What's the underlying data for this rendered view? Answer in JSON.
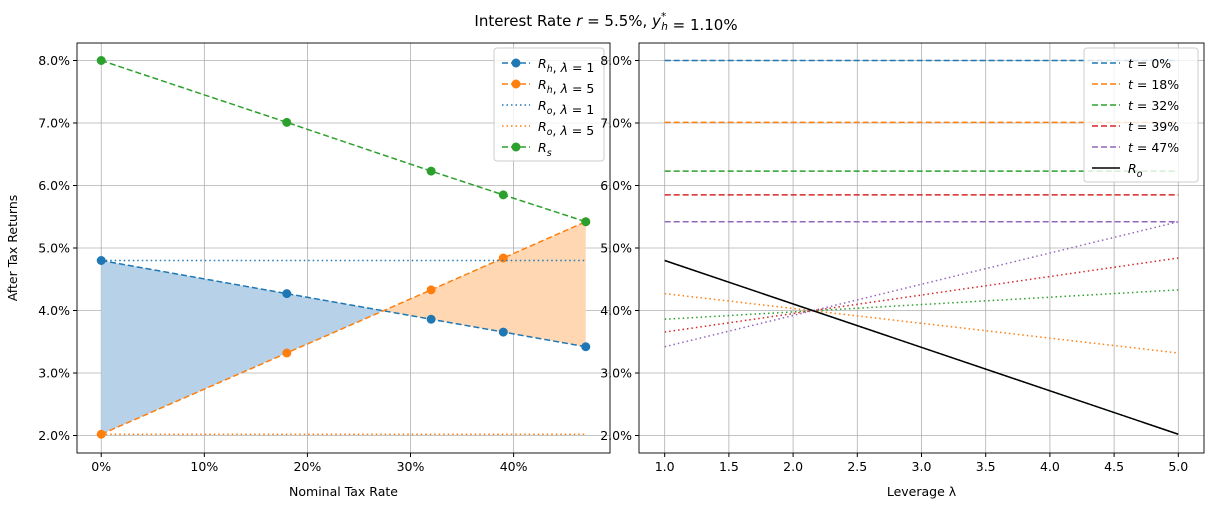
{
  "title": "Interest Rate r = 5.5%, y_h* = 1.10%",
  "chart_data": [
    {
      "type": "line",
      "xlabel": "Nominal Tax Rate",
      "ylabel": "After Tax Returns",
      "xlim": [
        -0.0235,
        0.4935
      ],
      "ylim": [
        1.72,
        8.28
      ],
      "grid": true,
      "legend_position": "top-right",
      "x_ticks": [
        0,
        0.1,
        0.2,
        0.3,
        0.4
      ],
      "x_tick_labels": [
        "0%",
        "10%",
        "20%",
        "30%",
        "40%"
      ],
      "y_ticks": [
        2,
        3,
        4,
        5,
        6,
        7,
        8
      ],
      "y_tick_labels": [
        "2.0%",
        "3.0%",
        "4.0%",
        "5.0%",
        "6.0%",
        "7.0%",
        "8.0%"
      ],
      "x": [
        0,
        0.18,
        0.32,
        0.39,
        0.47
      ],
      "series": [
        {
          "name": "R_h, λ = 1",
          "color": "#1f77b4",
          "style": "dashed",
          "marker": true,
          "values": [
            4.8,
            4.27,
            3.86,
            3.655,
            3.42
          ]
        },
        {
          "name": "R_h, λ = 5",
          "color": "#ff7f0e",
          "style": "dashed",
          "marker": true,
          "values": [
            2.02,
            3.32,
            4.33,
            4.84,
            5.42
          ]
        },
        {
          "name": "R_o, λ = 1",
          "color": "#1f77b4",
          "style": "dotted",
          "marker": false,
          "values": [
            4.8,
            4.8,
            4.8,
            4.8,
            4.8
          ]
        },
        {
          "name": "R_o, λ = 5",
          "color": "#ff7f0e",
          "style": "dotted",
          "marker": false,
          "values": [
            2.02,
            2.02,
            2.02,
            2.02,
            2.02
          ]
        },
        {
          "name": "R_s",
          "color": "#2ca02c",
          "style": "dashed",
          "marker": true,
          "values": [
            8.0,
            7.01,
            6.23,
            5.85,
            5.42
          ]
        }
      ],
      "fill_between": {
        "series": [
          0,
          1
        ],
        "color_above": "#b7d2e8",
        "color_below": "#ffd8b3"
      }
    },
    {
      "type": "line",
      "xlabel": "Leverage λ",
      "ylabel": "",
      "xlim": [
        0.8,
        5.2
      ],
      "ylim": [
        1.72,
        8.28
      ],
      "grid": true,
      "legend_position": "top-right",
      "x_ticks": [
        1.0,
        1.5,
        2.0,
        2.5,
        3.0,
        3.5,
        4.0,
        4.5,
        5.0
      ],
      "x_tick_labels": [
        "1.0",
        "1.5",
        "2.0",
        "2.5",
        "3.0",
        "3.5",
        "4.0",
        "4.5",
        "5.0"
      ],
      "y_ticks": [
        2,
        3,
        4,
        5,
        6,
        7,
        8
      ],
      "y_tick_labels": [
        "2.0%",
        "3.0%",
        "4.0%",
        "5.0%",
        "6.0%",
        "7.0%",
        "8.0%"
      ],
      "x": [
        1,
        5
      ],
      "series": [
        {
          "name": "t = 0%",
          "color": "#1f77b4",
          "style": "dashed",
          "values": [
            8.0,
            8.0
          ]
        },
        {
          "name": "t = 18%",
          "color": "#ff7f0e",
          "style": "dashed",
          "values": [
            7.01,
            7.01
          ]
        },
        {
          "name": "t = 32%",
          "color": "#2ca02c",
          "style": "dashed",
          "values": [
            6.23,
            6.23
          ]
        },
        {
          "name": "t = 39%",
          "color": "#d62728",
          "style": "dashed",
          "values": [
            5.85,
            5.85
          ]
        },
        {
          "name": "t = 47%",
          "color": "#9467bd",
          "style": "dashed",
          "values": [
            5.42,
            5.42
          ]
        },
        {
          "color": "#1f77b4",
          "style": "dotted",
          "values": [
            4.8,
            2.02
          ]
        },
        {
          "color": "#ff7f0e",
          "style": "dotted",
          "values": [
            4.27,
            3.32
          ]
        },
        {
          "color": "#2ca02c",
          "style": "dotted",
          "values": [
            3.86,
            4.33
          ]
        },
        {
          "color": "#d62728",
          "style": "dotted",
          "values": [
            3.655,
            4.84
          ]
        },
        {
          "color": "#9467bd",
          "style": "dotted",
          "values": [
            3.42,
            5.42
          ]
        },
        {
          "name": "R_o",
          "color": "#000000",
          "style": "solid",
          "values": [
            4.8,
            2.02
          ]
        }
      ]
    }
  ]
}
